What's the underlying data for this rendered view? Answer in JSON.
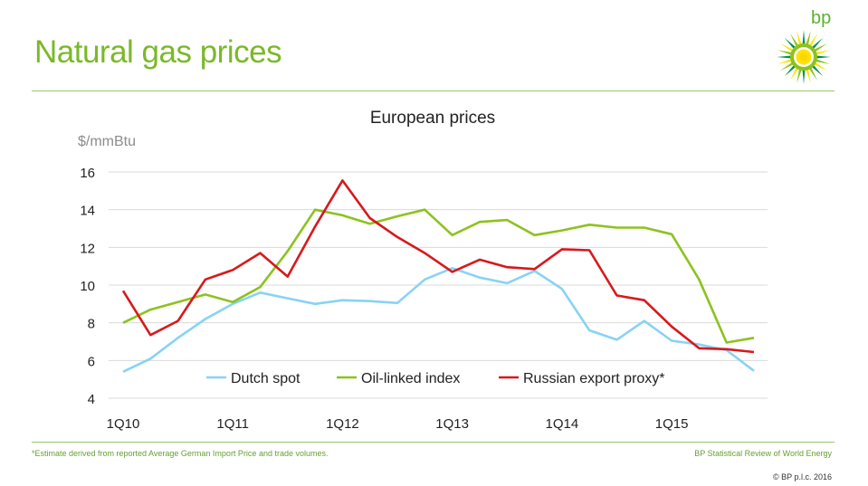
{
  "slide": {
    "title": "Natural gas prices",
    "brand": "bp",
    "footnote": "*Estimate derived from reported Average German Import Price and trade volumes.",
    "source": "BP Statistical Review of World Energy",
    "copyright": "© BP p.l.c. 2016"
  },
  "colors": {
    "brand_green": "#7ab929",
    "brand_yellow": "#ffd400",
    "dutch_spot": "#88d3f4",
    "oil_linked": "#8dc21f",
    "russian": "#d7191c"
  },
  "chart_data": {
    "type": "line",
    "title": "European prices",
    "ylabel": "$/mmBtu",
    "xlabel": "",
    "ylim": [
      4,
      16
    ],
    "yticks": [
      4,
      6,
      8,
      10,
      12,
      14,
      16
    ],
    "x_tick_labels": [
      "1Q10",
      "1Q11",
      "1Q12",
      "1Q13",
      "1Q14",
      "1Q15"
    ],
    "x_tick_quarter_index": [
      0,
      4,
      8,
      12,
      16,
      20
    ],
    "legend_position": "bottom-inside",
    "grid": true,
    "x": [
      "1Q10",
      "2Q10",
      "3Q10",
      "4Q10",
      "1Q11",
      "2Q11",
      "3Q11",
      "4Q11",
      "1Q12",
      "2Q12",
      "3Q12",
      "4Q12",
      "1Q13",
      "2Q13",
      "3Q13",
      "4Q13",
      "1Q14",
      "2Q14",
      "3Q14",
      "4Q14",
      "1Q15",
      "2Q15",
      "3Q15",
      "4Q15"
    ],
    "series": [
      {
        "name": "Dutch spot",
        "color": "#88d3f4",
        "values": [
          5.4,
          6.1,
          7.2,
          8.2,
          9.0,
          9.6,
          9.3,
          9.0,
          9.2,
          9.15,
          9.05,
          10.3,
          10.9,
          10.4,
          10.1,
          10.75,
          9.8,
          7.6,
          7.1,
          8.1,
          7.05,
          6.85,
          6.55,
          5.45
        ]
      },
      {
        "name": "Oil-linked index",
        "color": "#8dc21f",
        "values": [
          8.0,
          8.7,
          9.1,
          9.5,
          9.1,
          9.9,
          11.8,
          14.0,
          13.7,
          13.25,
          13.65,
          14.0,
          12.65,
          13.35,
          13.45,
          12.65,
          12.9,
          13.2,
          13.05,
          13.05,
          12.7,
          10.3,
          6.95,
          7.2
        ]
      },
      {
        "name": "Russian export proxy*",
        "color": "#d7191c",
        "values": [
          9.7,
          7.35,
          8.1,
          10.3,
          10.8,
          11.7,
          10.45,
          13.1,
          15.55,
          13.55,
          12.55,
          11.7,
          10.7,
          11.35,
          10.95,
          10.85,
          11.9,
          11.85,
          9.45,
          9.2,
          7.8,
          6.65,
          6.6,
          6.45
        ]
      }
    ]
  }
}
